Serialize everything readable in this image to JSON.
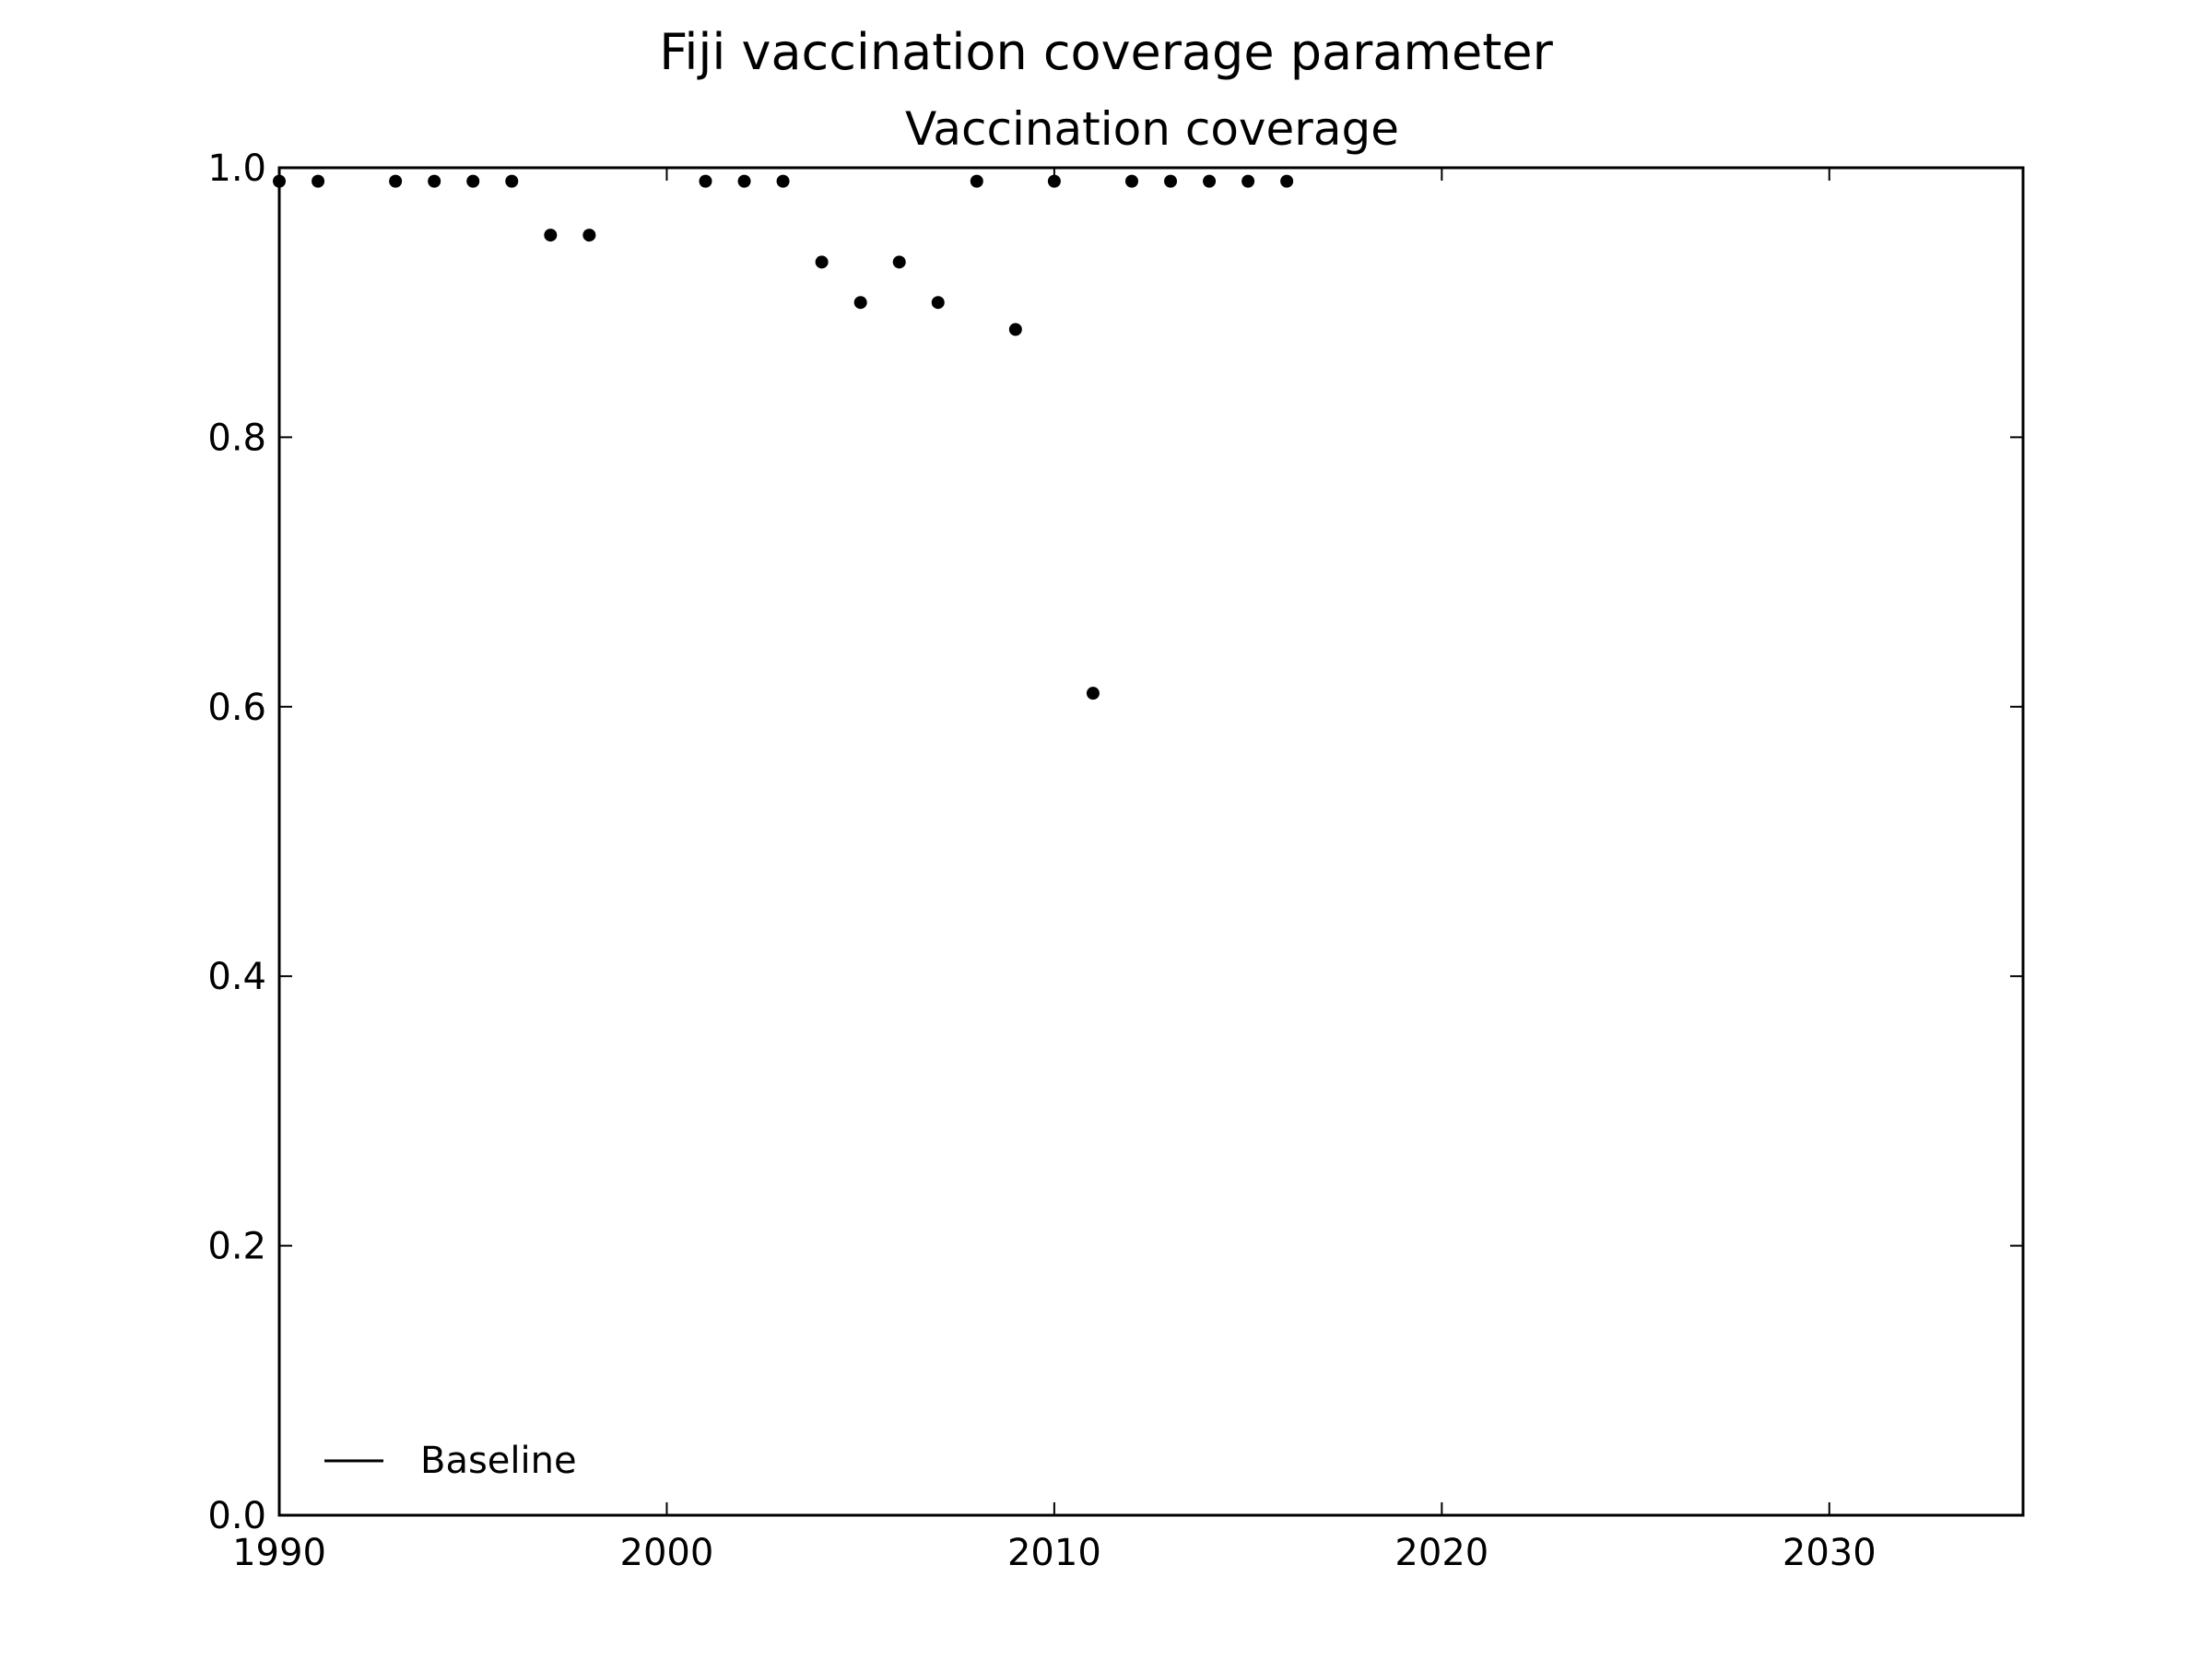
{
  "figure": {
    "suptitle": "Fiji vaccination coverage parameter"
  },
  "chart_data": {
    "type": "scatter",
    "title": "Vaccination coverage",
    "xlabel": "",
    "ylabel": "",
    "xlim": [
      1990,
      2035
    ],
    "ylim": [
      0.0,
      1.0
    ],
    "x_ticks": [
      1990,
      2000,
      2010,
      2020,
      2030
    ],
    "x_tick_labels": [
      "1990",
      "2000",
      "2010",
      "2020",
      "2030"
    ],
    "y_ticks": [
      0.0,
      0.2,
      0.4,
      0.6,
      0.8,
      1.0
    ],
    "y_tick_labels": [
      "0.0",
      "0.2",
      "0.4",
      "0.6",
      "0.8",
      "1.0"
    ],
    "grid": false,
    "marker_color": "#000000",
    "legend": {
      "placement": "lower-left",
      "entries": [
        {
          "label": "Baseline",
          "style": "line",
          "color": "#000000"
        }
      ]
    },
    "series": [
      {
        "x": [
          1990,
          1991,
          1993,
          1994,
          1995,
          1996,
          1997,
          1998,
          2001,
          2002,
          2003,
          2004,
          2005,
          2006,
          2007,
          2008,
          2009,
          2010,
          2011,
          2012,
          2013,
          2014,
          2015,
          2016
        ],
        "y": [
          0.99,
          0.99,
          0.99,
          0.99,
          0.99,
          0.99,
          0.95,
          0.95,
          0.99,
          0.99,
          0.99,
          0.93,
          0.9,
          0.93,
          0.9,
          0.99,
          0.88,
          0.99,
          0.61,
          0.99,
          0.99,
          0.99,
          0.99,
          0.99
        ]
      }
    ]
  }
}
